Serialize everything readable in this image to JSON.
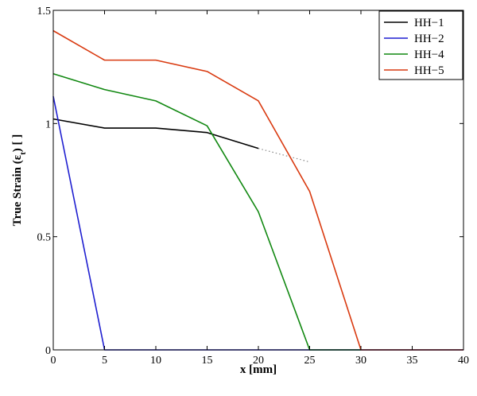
{
  "chart_data": {
    "type": "line",
    "title": "",
    "xlabel": "x [mm]",
    "ylabel": {
      "prefix": "True Strain (ε",
      "subscript": "t",
      "suffix": ") [ ]"
    },
    "xlim": [
      0,
      40
    ],
    "ylim": [
      0,
      1.5
    ],
    "xticks": [
      0,
      5,
      10,
      15,
      20,
      25,
      30,
      35,
      40
    ],
    "xtick_labels": [
      "0",
      "5",
      "10",
      "15",
      "20",
      "25",
      "30",
      "35",
      "40"
    ],
    "yticks": [
      0,
      0.5,
      1,
      1.5
    ],
    "ytick_labels": [
      "0",
      "0.5",
      "1",
      "1.5"
    ],
    "grid": false,
    "legend_position": "top-right",
    "series": [
      {
        "name": "HH−1",
        "color": "#000000",
        "x": [
          0,
          5,
          10,
          15,
          20
        ],
        "y": [
          1.02,
          0.98,
          0.98,
          0.96,
          0.89
        ],
        "extension": {
          "style": "dotted",
          "color": "#888888",
          "x": [
            20,
            25
          ],
          "y": [
            0.89,
            0.83
          ]
        }
      },
      {
        "name": "HH−2",
        "color": "#1f1fd0",
        "x": [
          0,
          5,
          10,
          15,
          20,
          25,
          30,
          35,
          40
        ],
        "y": [
          1.12,
          0,
          0,
          0,
          0,
          0,
          0,
          0,
          0
        ]
      },
      {
        "name": "HH−4",
        "color": "#118811",
        "x": [
          0,
          5,
          10,
          15,
          20,
          25,
          30
        ],
        "y": [
          1.22,
          1.15,
          1.1,
          0.99,
          0.61,
          0,
          0
        ]
      },
      {
        "name": "HH−5",
        "color": "#d93a10",
        "x": [
          0,
          5,
          10,
          15,
          20,
          25,
          30,
          35,
          40
        ],
        "y": [
          1.41,
          1.28,
          1.28,
          1.23,
          1.1,
          0.7,
          0,
          0,
          0
        ]
      }
    ]
  }
}
